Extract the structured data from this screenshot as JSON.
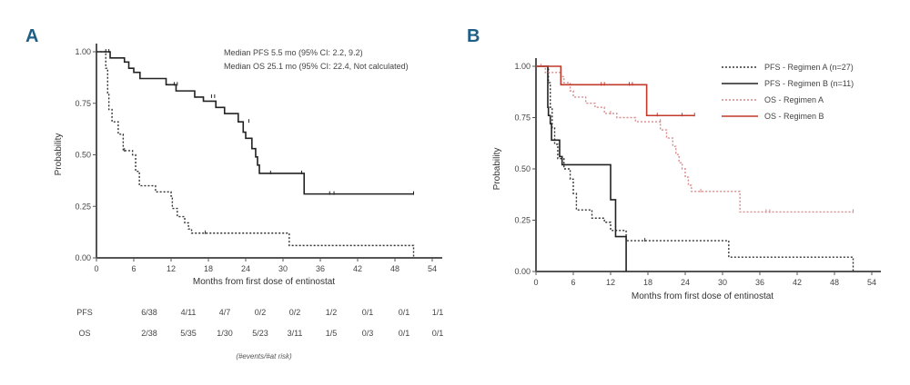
{
  "chart_data": [
    {
      "panel": "A",
      "type": "line",
      "subtype": "kaplan-meier",
      "xlabel": "Months from first dose of entinostat",
      "ylabel": "Probability",
      "xlim": [
        0,
        54
      ],
      "ylim": [
        0,
        1
      ],
      "xticks": [
        "0",
        "6",
        "12",
        "18",
        "24",
        "30",
        "36",
        "42",
        "48",
        "54"
      ],
      "xtick_values": [
        0,
        6,
        12,
        18,
        24,
        30,
        36,
        42,
        48,
        54
      ],
      "yticks": [
        "0.00",
        "0.25",
        "0.50",
        "0.75",
        "1.00"
      ],
      "ytick_values": [
        0,
        0.25,
        0.5,
        0.75,
        1.0
      ],
      "annotations": [
        "Median PFS 5.5 mo (95% CI: 2.2, 9.2)",
        "Median OS 25.1 mo (95% CI: 22.4, Not calculated)"
      ],
      "series": [
        {
          "name": "OS",
          "style": "solid",
          "color": "#222222",
          "steps": [
            [
              0,
              1.0
            ],
            [
              2.2,
              0.97
            ],
            [
              4.5,
              0.95
            ],
            [
              5.2,
              0.92
            ],
            [
              6.0,
              0.9
            ],
            [
              7.0,
              0.87
            ],
            [
              11.2,
              0.84
            ],
            [
              12.8,
              0.81
            ],
            [
              15.8,
              0.78
            ],
            [
              17.2,
              0.76
            ],
            [
              19.2,
              0.73
            ],
            [
              20.6,
              0.7
            ],
            [
              22.8,
              0.66
            ],
            [
              23.6,
              0.61
            ],
            [
              24.0,
              0.58
            ],
            [
              25.0,
              0.53
            ],
            [
              25.6,
              0.49
            ],
            [
              25.9,
              0.45
            ],
            [
              26.2,
              0.41
            ],
            [
              33.4,
              0.31
            ],
            [
              51.0,
              0.31
            ]
          ],
          "censors": [
            [
              1.5,
              1.0
            ],
            [
              2.0,
              1.0
            ],
            [
              12.5,
              0.84
            ],
            [
              13.0,
              0.84
            ],
            [
              18.5,
              0.78
            ],
            [
              19.0,
              0.78
            ],
            [
              24.5,
              0.66
            ],
            [
              28.0,
              0.41
            ],
            [
              33.0,
              0.41
            ],
            [
              37.5,
              0.31
            ],
            [
              38.2,
              0.31
            ],
            [
              51.0,
              0.31
            ]
          ]
        },
        {
          "name": "PFS",
          "style": "dotted",
          "color": "#333333",
          "steps": [
            [
              0,
              1.0
            ],
            [
              1.5,
              0.92
            ],
            [
              1.8,
              0.8
            ],
            [
              2.0,
              0.72
            ],
            [
              2.5,
              0.66
            ],
            [
              3.5,
              0.6
            ],
            [
              4.3,
              0.52
            ],
            [
              5.8,
              0.5
            ],
            [
              6.3,
              0.42
            ],
            [
              6.9,
              0.35
            ],
            [
              9.5,
              0.32
            ],
            [
              12.0,
              0.3
            ],
            [
              12.2,
              0.24
            ],
            [
              13.0,
              0.2
            ],
            [
              14.2,
              0.17
            ],
            [
              14.8,
              0.14
            ],
            [
              15.3,
              0.12
            ],
            [
              31.0,
              0.06
            ],
            [
              51.0,
              0.0
            ]
          ],
          "censors": [
            [
              4.5,
              0.52
            ],
            [
              17.5,
              0.12
            ]
          ]
        }
      ],
      "risk_table": {
        "rows": [
          {
            "label": "PFS",
            "values": [
              "6/38",
              "4/11",
              "4/7",
              "0/2",
              "0/2",
              "1/2",
              "0/1",
              "0/1",
              "1/1"
            ]
          },
          {
            "label": "OS",
            "values": [
              "2/38",
              "5/35",
              "1/30",
              "5/23",
              "3/11",
              "1/5",
              "0/3",
              "0/1",
              "0/1"
            ]
          }
        ],
        "footnote": "(#events/#at risk)"
      }
    },
    {
      "panel": "B",
      "type": "line",
      "subtype": "kaplan-meier",
      "xlabel": "Months from first dose of entinostat",
      "ylabel": "Probability",
      "xlim": [
        0,
        54
      ],
      "ylim": [
        0,
        1
      ],
      "xticks": [
        "0",
        "6",
        "12",
        "18",
        "24",
        "30",
        "36",
        "42",
        "48",
        "54"
      ],
      "xtick_values": [
        0,
        6,
        12,
        18,
        24,
        30,
        36,
        42,
        48,
        54
      ],
      "yticks": [
        "0.00",
        "0.25",
        "0.50",
        "0.75",
        "1.00"
      ],
      "ytick_values": [
        0,
        0.25,
        0.5,
        0.75,
        1.0
      ],
      "legend_position": "top-right",
      "series": [
        {
          "name": "PFS - Regimen A (n=27)",
          "style": "dotted",
          "color": "#333333",
          "steps": [
            [
              0,
              1.0
            ],
            [
              2.0,
              0.92
            ],
            [
              2.3,
              0.8
            ],
            [
              2.6,
              0.7
            ],
            [
              3.0,
              0.62
            ],
            [
              3.5,
              0.55
            ],
            [
              4.5,
              0.5
            ],
            [
              5.5,
              0.45
            ],
            [
              6.0,
              0.38
            ],
            [
              6.5,
              0.3
            ],
            [
              9.0,
              0.26
            ],
            [
              11.0,
              0.24
            ],
            [
              12.0,
              0.2
            ],
            [
              14.5,
              0.15
            ],
            [
              31.0,
              0.07
            ],
            [
              51.0,
              0.0
            ]
          ],
          "censors": [
            [
              17.5,
              0.15
            ]
          ]
        },
        {
          "name": "PFS - Regimen B (n=11)",
          "style": "solid",
          "color": "#222222",
          "steps": [
            [
              0,
              1.0
            ],
            [
              1.9,
              0.8
            ],
            [
              2.0,
              0.76
            ],
            [
              2.3,
              0.72
            ],
            [
              2.5,
              0.64
            ],
            [
              3.8,
              0.56
            ],
            [
              4.2,
              0.52
            ],
            [
              12.0,
              0.35
            ],
            [
              12.8,
              0.17
            ],
            [
              14.5,
              0.0
            ]
          ],
          "censors": []
        },
        {
          "name": "OS - Regimen A",
          "style": "dotted",
          "color": "#d98a8a",
          "steps": [
            [
              0,
              1.0
            ],
            [
              1.5,
              0.97
            ],
            [
              4.0,
              0.95
            ],
            [
              4.5,
              0.92
            ],
            [
              5.5,
              0.88
            ],
            [
              6.0,
              0.85
            ],
            [
              8.0,
              0.82
            ],
            [
              9.5,
              0.8
            ],
            [
              11.0,
              0.77
            ],
            [
              13.0,
              0.75
            ],
            [
              16.0,
              0.73
            ],
            [
              20.0,
              0.69
            ],
            [
              21.0,
              0.65
            ],
            [
              22.0,
              0.61
            ],
            [
              22.5,
              0.57
            ],
            [
              23.0,
              0.53
            ],
            [
              23.5,
              0.5
            ],
            [
              24.0,
              0.46
            ],
            [
              24.5,
              0.42
            ],
            [
              25.0,
              0.39
            ],
            [
              32.8,
              0.29
            ],
            [
              51.0,
              0.29
            ]
          ],
          "censors": [
            [
              0.8,
              1.0
            ],
            [
              12.0,
              0.77
            ],
            [
              20.0,
              0.73
            ],
            [
              26.5,
              0.39
            ],
            [
              37.0,
              0.29
            ],
            [
              37.6,
              0.29
            ],
            [
              51.0,
              0.29
            ]
          ]
        },
        {
          "name": "OS - Regimen B",
          "style": "solid",
          "color": "#c0392b",
          "steps": [
            [
              0,
              1.0
            ],
            [
              4.0,
              0.91
            ],
            [
              17.8,
              0.76
            ],
            [
              25.5,
              0.76
            ]
          ],
          "censors": [
            [
              10.5,
              0.91
            ],
            [
              11.0,
              0.91
            ],
            [
              15.0,
              0.91
            ],
            [
              15.5,
              0.91
            ],
            [
              19.5,
              0.76
            ],
            [
              23.5,
              0.76
            ],
            [
              25.5,
              0.76
            ]
          ]
        }
      ]
    }
  ],
  "panels": {
    "a_label": "A",
    "b_label": "B"
  }
}
